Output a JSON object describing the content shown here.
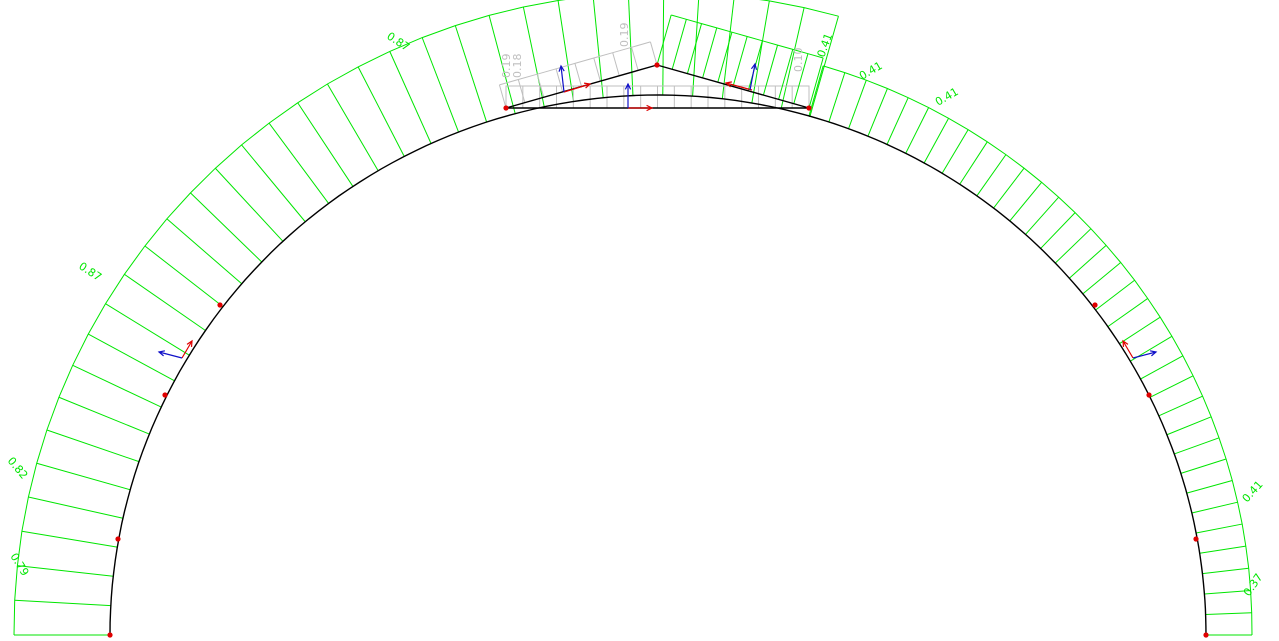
{
  "colors": {
    "background": "#ffffff",
    "structure": "#000000",
    "load_diagram": "#00e600",
    "roof_load_diagram": "#bfbfbf",
    "node": "#e00000",
    "local_x_axis": "#e00000",
    "local_y_axis": "#1010c8"
  },
  "arch_left_labels": [
    {
      "id": "al1",
      "text": "0.87"
    },
    {
      "id": "al2",
      "text": "0.87"
    },
    {
      "id": "al3",
      "text": "0.82"
    },
    {
      "id": "al4",
      "text": "0.79"
    }
  ],
  "arch_right_labels": [
    {
      "id": "ar1",
      "text": "0.41"
    },
    {
      "id": "ar2",
      "text": "0.41"
    },
    {
      "id": "ar3",
      "text": "0.41"
    },
    {
      "id": "ar4",
      "text": "0.41"
    },
    {
      "id": "ar5",
      "text": "0.37"
    }
  ],
  "roof_labels": [
    {
      "id": "r1",
      "text": "0.19"
    },
    {
      "id": "r2",
      "text": "0.18"
    },
    {
      "id": "r3",
      "text": "0.19"
    },
    {
      "id": "r4",
      "text": "0.10"
    }
  ]
}
